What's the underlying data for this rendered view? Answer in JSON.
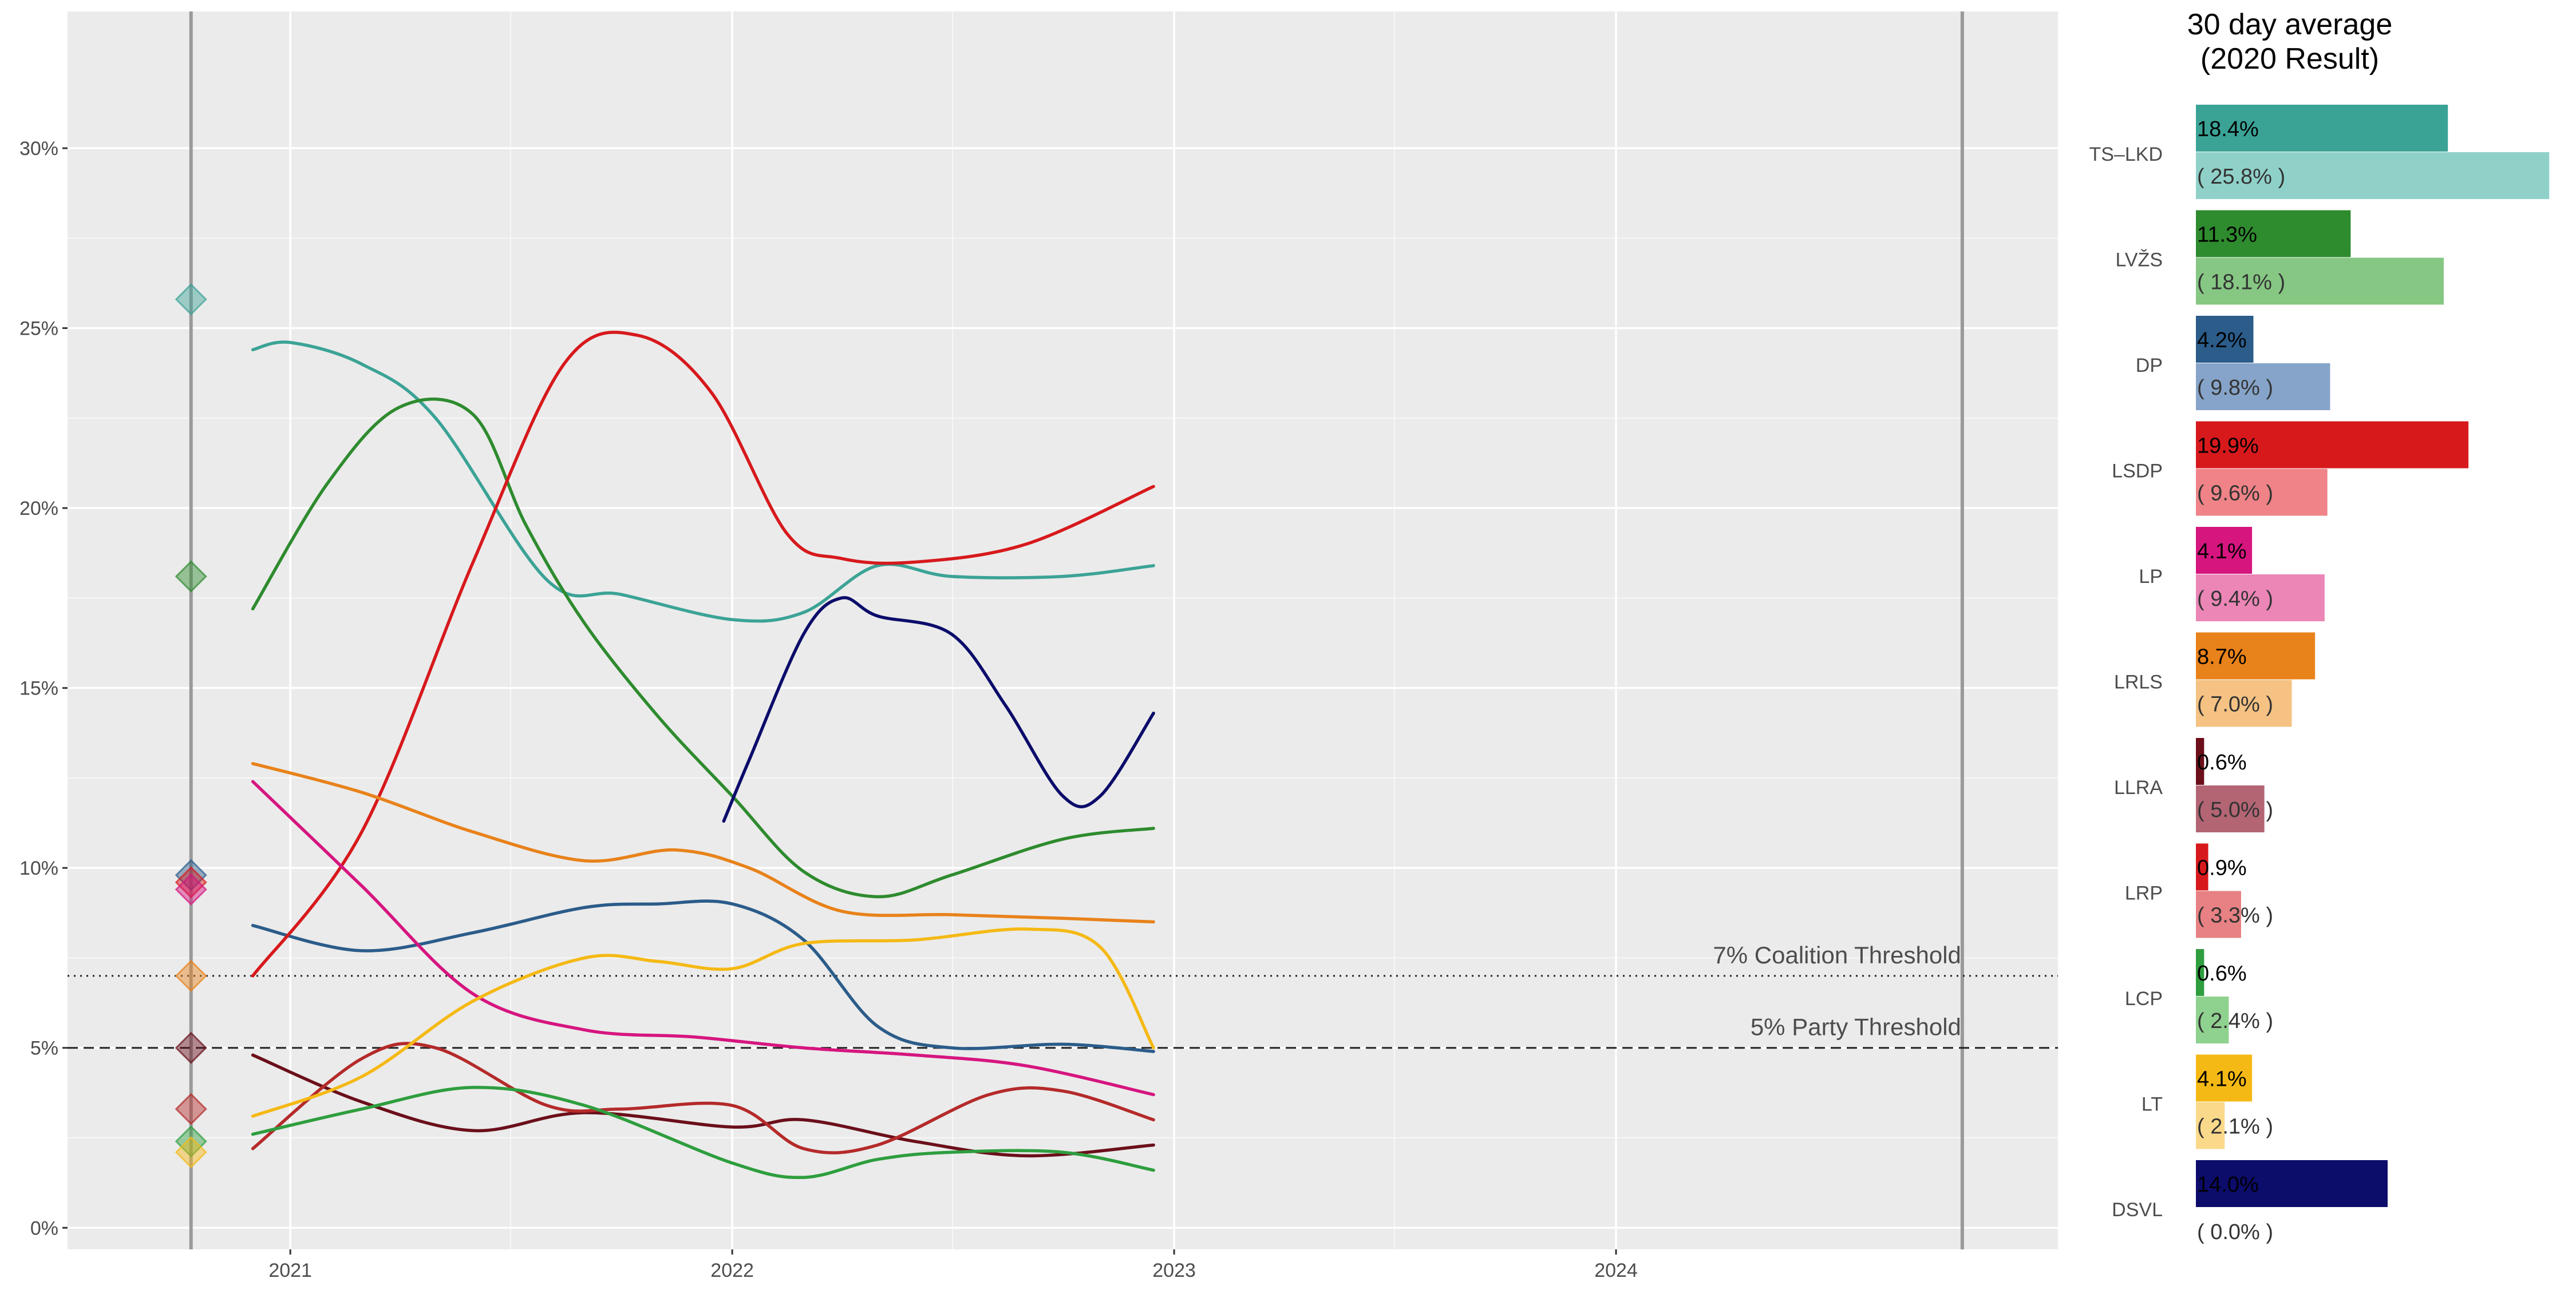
{
  "chart_data": [
    {
      "type": "scatter",
      "title": "",
      "xlabel": "",
      "ylabel": "",
      "xlim": [
        "2020-07-01",
        "2024-12-31"
      ],
      "ylim": [
        -0.6,
        33.8
      ],
      "x_ticks": [
        "2021",
        "2022",
        "2023",
        "2024"
      ],
      "x_tick_dates": [
        "2021-01-01",
        "2022-01-01",
        "2023-01-01",
        "2024-01-01"
      ],
      "y_ticks": [
        0,
        5,
        10,
        15,
        20,
        25,
        30
      ],
      "y_tick_labels": [
        "0%",
        "5%",
        "10%",
        "15%",
        "20%",
        "25%",
        "30%"
      ],
      "grid": true,
      "election_dates": [
        "2020-10-11",
        "2024-10-13"
      ],
      "thresholds": [
        {
          "label": "7% Coalition Threshold",
          "value": 7,
          "style": "dotted"
        },
        {
          "label": "5% Party Threshold",
          "value": 5,
          "style": "dashed"
        }
      ],
      "election_results_2020": [
        {
          "party": "TS–LKD",
          "value": 25.8
        },
        {
          "party": "LVŽS",
          "value": 18.1
        },
        {
          "party": "DP",
          "value": 9.8
        },
        {
          "party": "LSDP",
          "value": 9.6
        },
        {
          "party": "LP",
          "value": 9.4
        },
        {
          "party": "LRLS",
          "value": 7.0
        },
        {
          "party": "LLRA",
          "value": 5.0
        },
        {
          "party": "LRP",
          "value": 3.3
        },
        {
          "party": "LCP",
          "value": 2.4
        },
        {
          "party": "LT",
          "value": 2.1
        }
      ],
      "series": [
        {
          "party": "TS–LKD",
          "color": "#3BA396",
          "trend": [
            [
              "2020-12-01",
              24.4
            ],
            [
              "2021-01-01",
              24.6
            ],
            [
              "2021-03-01",
              24.0
            ],
            [
              "2021-05-01",
              22.5
            ],
            [
              "2021-08-01",
              18.0
            ],
            [
              "2021-10-01",
              17.6
            ],
            [
              "2022-01-01",
              16.9
            ],
            [
              "2022-03-01",
              17.1
            ],
            [
              "2022-05-01",
              18.4
            ],
            [
              "2022-07-01",
              18.1
            ],
            [
              "2022-10-01",
              18.1
            ],
            [
              "2022-12-15",
              18.4
            ]
          ]
        },
        {
          "party": "LVŽS",
          "color": "#2E8B2E",
          "trend": [
            [
              "2020-12-01",
              17.2
            ],
            [
              "2021-02-01",
              20.7
            ],
            [
              "2021-04-01",
              22.8
            ],
            [
              "2021-06-01",
              22.6
            ],
            [
              "2021-07-15",
              19.5
            ],
            [
              "2021-09-01",
              16.8
            ],
            [
              "2021-11-01",
              14.2
            ],
            [
              "2022-01-01",
              12.0
            ],
            [
              "2022-03-01",
              9.9
            ],
            [
              "2022-05-01",
              9.2
            ],
            [
              "2022-07-01",
              9.8
            ],
            [
              "2022-10-01",
              10.8
            ],
            [
              "2022-12-15",
              11.1
            ]
          ]
        },
        {
          "party": "DP",
          "color": "#2B5C8A",
          "trend": [
            [
              "2020-12-01",
              8.4
            ],
            [
              "2021-03-01",
              7.7
            ],
            [
              "2021-06-01",
              8.2
            ],
            [
              "2021-09-01",
              8.9
            ],
            [
              "2021-11-01",
              9.0
            ],
            [
              "2022-01-01",
              9.0
            ],
            [
              "2022-03-01",
              8.0
            ],
            [
              "2022-05-01",
              5.6
            ],
            [
              "2022-07-01",
              5.0
            ],
            [
              "2022-10-01",
              5.1
            ],
            [
              "2022-12-15",
              4.9
            ]
          ]
        },
        {
          "party": "LSDP",
          "color": "#D7191C",
          "trend": [
            [
              "2020-12-01",
              7.0
            ],
            [
              "2021-03-01",
              11.0
            ],
            [
              "2021-06-01",
              18.5
            ],
            [
              "2021-08-15",
              24.0
            ],
            [
              "2021-10-15",
              24.8
            ],
            [
              "2021-12-15",
              23.2
            ],
            [
              "2022-02-15",
              19.3
            ],
            [
              "2022-04-01",
              18.6
            ],
            [
              "2022-06-01",
              18.5
            ],
            [
              "2022-09-01",
              19.0
            ],
            [
              "2022-12-15",
              20.6
            ]
          ]
        },
        {
          "party": "LP",
          "color": "#D6157F",
          "trend": [
            [
              "2020-12-01",
              12.4
            ],
            [
              "2021-03-01",
              9.5
            ],
            [
              "2021-06-01",
              6.5
            ],
            [
              "2021-09-01",
              5.5
            ],
            [
              "2021-12-01",
              5.3
            ],
            [
              "2022-03-01",
              5.0
            ],
            [
              "2022-06-01",
              4.8
            ],
            [
              "2022-09-01",
              4.5
            ],
            [
              "2022-12-15",
              3.7
            ]
          ]
        },
        {
          "party": "LRLS",
          "color": "#E8821A",
          "trend": [
            [
              "2020-12-01",
              12.9
            ],
            [
              "2021-03-01",
              12.1
            ],
            [
              "2021-06-01",
              11.0
            ],
            [
              "2021-09-01",
              10.2
            ],
            [
              "2021-11-15",
              10.5
            ],
            [
              "2022-01-15",
              10.0
            ],
            [
              "2022-04-01",
              8.8
            ],
            [
              "2022-07-01",
              8.7
            ],
            [
              "2022-10-01",
              8.6
            ],
            [
              "2022-12-15",
              8.5
            ]
          ]
        },
        {
          "party": "LLRA",
          "color": "#6B0F1A",
          "trend": [
            [
              "2020-12-01",
              4.8
            ],
            [
              "2021-03-01",
              3.5
            ],
            [
              "2021-06-01",
              2.7
            ],
            [
              "2021-09-01",
              3.2
            ],
            [
              "2022-01-01",
              2.8
            ],
            [
              "2022-03-01",
              3.0
            ],
            [
              "2022-06-01",
              2.4
            ],
            [
              "2022-09-01",
              2.0
            ],
            [
              "2022-12-15",
              2.3
            ]
          ]
        },
        {
          "party": "LRP",
          "color": "#B52A2A",
          "trend": [
            [
              "2020-12-01",
              2.2
            ],
            [
              "2021-03-01",
              4.7
            ],
            [
              "2021-05-01",
              5.0
            ],
            [
              "2021-08-01",
              3.4
            ],
            [
              "2021-10-01",
              3.3
            ],
            [
              "2022-01-01",
              3.4
            ],
            [
              "2022-03-01",
              2.2
            ],
            [
              "2022-05-01",
              2.3
            ],
            [
              "2022-08-01",
              3.7
            ],
            [
              "2022-10-01",
              3.8
            ],
            [
              "2022-12-15",
              3.0
            ]
          ]
        },
        {
          "party": "LCP",
          "color": "#2E9E3E",
          "trend": [
            [
              "2020-12-01",
              2.6
            ],
            [
              "2021-03-01",
              3.3
            ],
            [
              "2021-06-01",
              3.9
            ],
            [
              "2021-09-01",
              3.4
            ],
            [
              "2022-01-01",
              1.8
            ],
            [
              "2022-03-01",
              1.4
            ],
            [
              "2022-05-01",
              1.9
            ],
            [
              "2022-07-01",
              2.1
            ],
            [
              "2022-10-01",
              2.1
            ],
            [
              "2022-12-15",
              1.6
            ]
          ]
        },
        {
          "party": "LT",
          "color": "#F5B915",
          "trend": [
            [
              "2020-12-01",
              3.1
            ],
            [
              "2021-03-01",
              4.2
            ],
            [
              "2021-06-01",
              6.3
            ],
            [
              "2021-09-01",
              7.5
            ],
            [
              "2021-11-01",
              7.4
            ],
            [
              "2022-01-01",
              7.2
            ],
            [
              "2022-03-01",
              7.9
            ],
            [
              "2022-06-01",
              8.0
            ],
            [
              "2022-09-01",
              8.3
            ],
            [
              "2022-11-01",
              7.8
            ],
            [
              "2022-12-15",
              5.0
            ]
          ]
        },
        {
          "party": "DSVL",
          "color": "#0C0C6B",
          "trend": [
            [
              "2021-12-25",
              11.3
            ],
            [
              "2022-01-15",
              13.0
            ],
            [
              "2022-03-01",
              16.5
            ],
            [
              "2022-04-01",
              17.5
            ],
            [
              "2022-05-01",
              17.0
            ],
            [
              "2022-07-01",
              16.5
            ],
            [
              "2022-08-15",
              14.5
            ],
            [
              "2022-10-01",
              12.0
            ],
            [
              "2022-11-01",
              12.0
            ],
            [
              "2022-12-15",
              14.3
            ]
          ]
        }
      ]
    },
    {
      "type": "bar",
      "title": "30 day average\n(2020 Result)",
      "title_lines": [
        "30 day average",
        "(2020 Result)"
      ],
      "categories": [
        "TS–LKD",
        "LVŽS",
        "DP",
        "LSDP",
        "LP",
        "LRLS",
        "LLRA",
        "LRP",
        "LCP",
        "LT",
        "DSVL"
      ],
      "colors_current": [
        "#3BA396",
        "#2E8B2E",
        "#2B5C8A",
        "#D7191C",
        "#D6157F",
        "#E8821A",
        "#6B0F1A",
        "#D7191C",
        "#2E9E3E",
        "#F5B915",
        "#0C0C6B"
      ],
      "colors_result": [
        "#8FD1C9",
        "#86C783",
        "#86A4C9",
        "#EF8387",
        "#EB86B6",
        "#F5C283",
        "#B36574",
        "#E78183",
        "#8FD18F",
        "#FAD98A",
        "#AAAAD6"
      ],
      "series": [
        {
          "name": "30 day average",
          "values": [
            18.4,
            11.3,
            4.2,
            19.9,
            4.1,
            8.7,
            0.6,
            0.9,
            0.6,
            4.1,
            14.0
          ],
          "labels": [
            "18.4%",
            "11.3%",
            "4.2%",
            "19.9%",
            "4.1%",
            "8.7%",
            "0.6%",
            "0.9%",
            "0.6%",
            "4.1%",
            "14.0%"
          ]
        },
        {
          "name": "(2020 Result)",
          "values": [
            25.8,
            18.1,
            9.8,
            9.6,
            9.4,
            7.0,
            5.0,
            3.3,
            2.4,
            2.1,
            0.0
          ],
          "labels": [
            "( 25.8% )",
            "( 18.1% )",
            "( 9.8% )",
            "( 9.6% )",
            "( 9.4% )",
            "( 7.0% )",
            "( 5.0% )",
            "( 3.3% )",
            "( 2.4% )",
            "( 2.1% )",
            "( 0.0% )"
          ]
        }
      ],
      "xlim": [
        0,
        26.5
      ]
    }
  ]
}
